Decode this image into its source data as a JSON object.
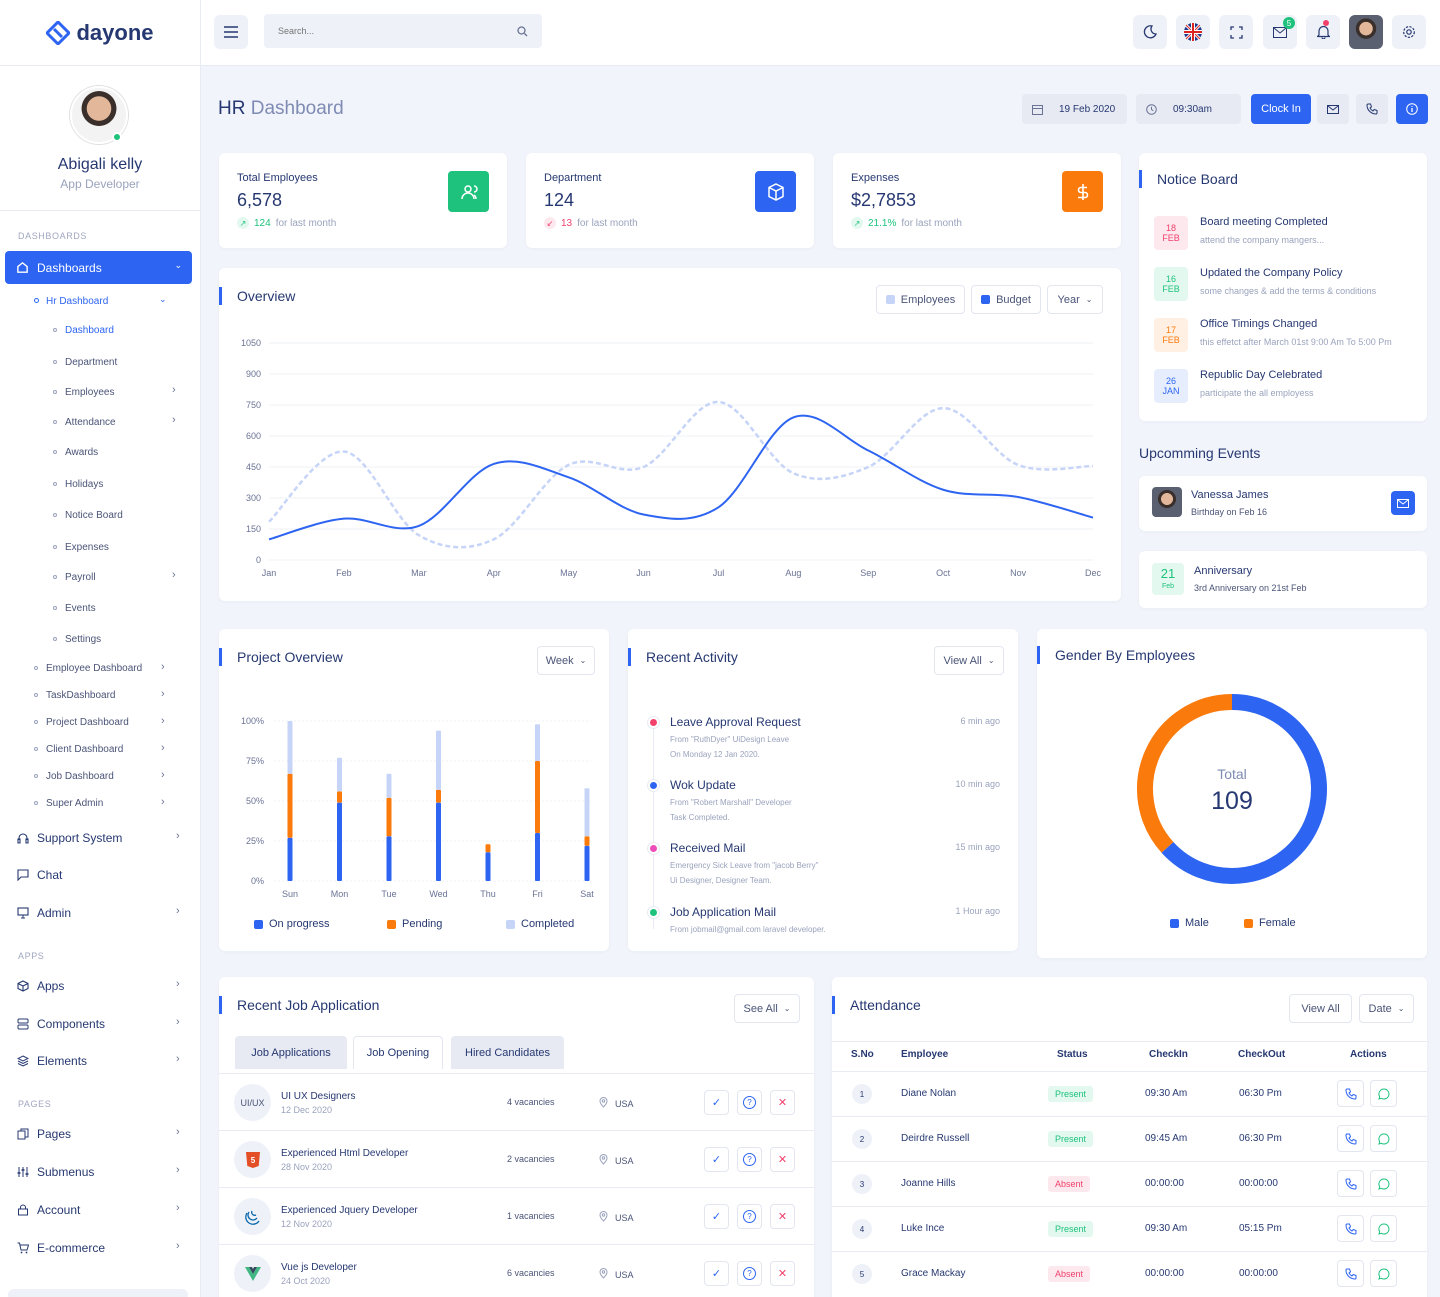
{
  "brand": {
    "name": "dayone"
  },
  "profile": {
    "name": "Abigali kelly",
    "role": "App Developer"
  },
  "sidebar": {
    "cat_dashboards": "DASHBOARDS",
    "active": "Dashboards",
    "hr": "Hr Dashboard",
    "hr_items": [
      "Dashboard",
      "Department",
      "Employees",
      "Attendance",
      "Awards",
      "Holidays",
      "Notice Board",
      "Expenses",
      "Payroll",
      "Events",
      "Settings"
    ],
    "dash_items": [
      "Employee Dashboard",
      "TaskDashboard",
      "Project Dashboard",
      "Client Dashboard",
      "Job Dashboard",
      "Super Admin"
    ],
    "main1": [
      "Support System",
      "Chat",
      "Admin"
    ],
    "cat_apps": "APPS",
    "apps": [
      "Apps",
      "Components",
      "Elements"
    ],
    "cat_pages": "PAGES",
    "pages": [
      "Pages",
      "Submenus",
      "Account",
      "E-commerce"
    ]
  },
  "header": {
    "search_placeholder": "Search...",
    "mail_badge": "5"
  },
  "page": {
    "title_a": "HR",
    "title_b": "Dashboard",
    "date": "19 Feb 2020",
    "time": "09:30am",
    "clock_in": "Clock In"
  },
  "stats": [
    {
      "label": "Total Employees",
      "value": "6,578",
      "delta": "124",
      "sub": "for last month",
      "color": "#1ec27c"
    },
    {
      "label": "Department",
      "value": "124",
      "delta": "13",
      "sub": "for last month",
      "color": "#2d64f1"
    },
    {
      "label": "Expenses",
      "value": "$2,7853",
      "delta": "21.1%",
      "sub": "for last month",
      "color": "#fb7a0c"
    }
  ],
  "overview": {
    "title": "Overview",
    "legend_employees": "Employees",
    "legend_budget": "Budget",
    "year": "Year"
  },
  "chart_data": [
    {
      "type": "line",
      "title": "Overview",
      "x": [
        "Jan",
        "Feb",
        "Mar",
        "Apr",
        "May",
        "Jun",
        "Jul",
        "Aug",
        "Sep",
        "Oct",
        "Nov",
        "Dec"
      ],
      "ylim": [
        0,
        1050
      ],
      "yticks": [
        0,
        150,
        300,
        450,
        600,
        750,
        900,
        1050
      ],
      "series": [
        {
          "name": "Budget",
          "values": [
            100,
            200,
            165,
            465,
            400,
            220,
            255,
            690,
            530,
            340,
            305,
            205
          ],
          "color": "#2d64f1",
          "style": "solid"
        },
        {
          "name": "Employees",
          "values": [
            185,
            525,
            120,
            100,
            460,
            450,
            765,
            420,
            450,
            735,
            460,
            455
          ],
          "color": "#c6d4f8",
          "style": "dashed"
        }
      ]
    },
    {
      "type": "bar",
      "title": "Project Overview",
      "categories": [
        "Sun",
        "Mon",
        "Tue",
        "Wed",
        "Thu",
        "Fri",
        "Sat"
      ],
      "ylim": [
        0,
        100
      ],
      "yticks": [
        "0%",
        "25%",
        "50%",
        "75%",
        "100%"
      ],
      "series": [
        {
          "name": "On progress",
          "values": [
            27,
            49,
            28,
            49,
            18,
            30,
            22
          ],
          "color": "#2d64f1"
        },
        {
          "name": "Pending",
          "values": [
            40,
            7,
            24,
            8,
            5,
            45,
            6
          ],
          "color": "#fb7a0c"
        },
        {
          "name": "Completed",
          "values": [
            33,
            21,
            15,
            37,
            0,
            23,
            30
          ],
          "color": "#c6d4f8"
        }
      ]
    },
    {
      "type": "pie",
      "title": "Gender By Employees",
      "total_label": "Total",
      "total": "109",
      "series": [
        {
          "name": "Male",
          "value": 69,
          "color": "#2d64f1"
        },
        {
          "name": "Female",
          "value": 40,
          "color": "#fb7a0c"
        }
      ]
    }
  ],
  "project": {
    "title": "Project Overview",
    "filter": "Week"
  },
  "activity": {
    "title": "Recent Activity",
    "view_all": "View All",
    "items": [
      {
        "title": "Leave Approval Request",
        "line1": "From \"RuthDyer\" UiDesign Leave",
        "line2": "On Monday 12 Jan 2020.",
        "time": "6 min ago",
        "color": "#f1416c"
      },
      {
        "title": "Wok Update",
        "line1": "From \"Robert Marshall\" Developer",
        "line2": "Task Completed.",
        "time": "10 min ago",
        "color": "#2d64f1"
      },
      {
        "title": "Received Mail",
        "line1": "Emergency Sick Leave from \"jacob Berry\"",
        "line2": "Ui Designer, Designer Team.",
        "time": "15 min ago",
        "color": "#ec4db9"
      },
      {
        "title": "Job Application Mail",
        "line1": "From jobmail@gmail.com laravel developer.",
        "line2": "",
        "time": "1 Hour ago",
        "color": "#1ec27c"
      }
    ]
  },
  "gender": {
    "title": "Gender By Employees",
    "male": "Male",
    "female": "Female"
  },
  "notice": {
    "title": "Notice Board",
    "items": [
      {
        "day": "18",
        "mon": "FEB",
        "title": "Board meeting Completed",
        "sub": "attend the company mangers...",
        "color": "#f1416c",
        "bg": "#fde8ee"
      },
      {
        "day": "16",
        "mon": "FEB",
        "title": "Updated the Company Policy",
        "sub": "some changes & add the terms & conditions",
        "color": "#1ec27c",
        "bg": "#e3f8ef"
      },
      {
        "day": "17",
        "mon": "FEB",
        "title": "Office Timings Changed",
        "sub": "this effetct after March 01st 9:00 Am To 5:00 Pm",
        "color": "#fb7a0c",
        "bg": "#fff0e3"
      },
      {
        "day": "26",
        "mon": "JAN",
        "title": "Republic Day Celebrated",
        "sub": "participate the all employess",
        "color": "#2d64f1",
        "bg": "#e6eefe"
      }
    ]
  },
  "events": {
    "title": "Upcomming Events",
    "e1_name": "Vanessa James",
    "e1_sub": "Birthday on Feb 16",
    "e2_day": "21",
    "e2_mon": "Feb",
    "e2_name": "Anniversary",
    "e2_sub": "3rd Anniversary on 21st Feb"
  },
  "jobs": {
    "title": "Recent Job Application",
    "see_all": "See All",
    "tabs": [
      "Job Applications",
      "Job Opening",
      "Hired Candidates"
    ],
    "rows": [
      {
        "icon": "UI/UX",
        "title": "UI UX Designers",
        "date": "12 Dec 2020",
        "vac": "4 vacancies",
        "loc": "USA"
      },
      {
        "icon": "5",
        "title": "Experienced Html Developer",
        "date": "28 Nov 2020",
        "vac": "2 vacancies",
        "loc": "USA"
      },
      {
        "icon": "jq",
        "title": "Experienced Jquery Developer",
        "date": "12 Nov 2020",
        "vac": "1 vacancies",
        "loc": "USA"
      },
      {
        "icon": "V",
        "title": "Vue js Developer",
        "date": "24 Oct 2020",
        "vac": "6 vacancies",
        "loc": "USA"
      }
    ]
  },
  "attendance": {
    "title": "Attendance",
    "view_all": "View All",
    "date": "Date",
    "cols": [
      "S.No",
      "Employee",
      "Status",
      "CheckIn",
      "CheckOut",
      "Actions"
    ],
    "rows": [
      {
        "n": "1",
        "name": "Diane Nolan",
        "status": "Present",
        "in": "09:30 Am",
        "out": "06:30 Pm"
      },
      {
        "n": "2",
        "name": "Deirdre Russell",
        "status": "Present",
        "in": "09:45 Am",
        "out": "06:30 Pm"
      },
      {
        "n": "3",
        "name": "Joanne Hills",
        "status": "Absent",
        "in": "00:00:00",
        "out": "00:00:00"
      },
      {
        "n": "4",
        "name": "Luke Ince",
        "status": "Present",
        "in": "09:30 Am",
        "out": "05:15 Pm"
      },
      {
        "n": "5",
        "name": "Grace Mackay",
        "status": "Absent",
        "in": "00:00:00",
        "out": "00:00:00"
      }
    ]
  }
}
